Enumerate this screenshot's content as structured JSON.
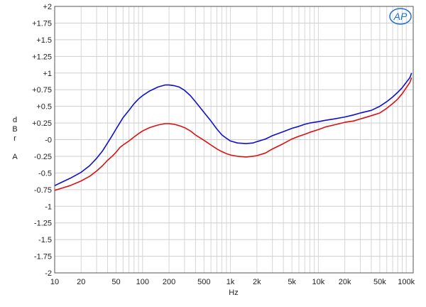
{
  "chart_data": {
    "type": "line",
    "title": "",
    "xlabel": "Hz",
    "ylabel": [
      "d",
      "B",
      "r",
      "",
      "A"
    ],
    "x_scale": "log",
    "xlim": [
      10,
      120000
    ],
    "ylim": [
      -2,
      2
    ],
    "grid": true,
    "legend": "none",
    "logo": "AP",
    "x_ticks": [
      {
        "value": 10,
        "label": "10"
      },
      {
        "value": 20,
        "label": "20"
      },
      {
        "value": 50,
        "label": "50"
      },
      {
        "value": 100,
        "label": "100"
      },
      {
        "value": 200,
        "label": "200"
      },
      {
        "value": 500,
        "label": "500"
      },
      {
        "value": 1000,
        "label": "1k"
      },
      {
        "value": 2000,
        "label": "2k"
      },
      {
        "value": 5000,
        "label": "5k"
      },
      {
        "value": 10000,
        "label": "10k"
      },
      {
        "value": 20000,
        "label": "20k"
      },
      {
        "value": 50000,
        "label": "50k"
      },
      {
        "value": 100000,
        "label": "100k"
      }
    ],
    "y_ticks": [
      {
        "value": 2,
        "label": "+2"
      },
      {
        "value": 1.75,
        "label": "+1.75"
      },
      {
        "value": 1.5,
        "label": "+1.5"
      },
      {
        "value": 1.25,
        "label": "+1.25"
      },
      {
        "value": 1,
        "label": "+1"
      },
      {
        "value": 0.75,
        "label": "+0.75"
      },
      {
        "value": 0.5,
        "label": "+0.5"
      },
      {
        "value": 0.25,
        "label": "+0.25"
      },
      {
        "value": 0,
        "label": "-0"
      },
      {
        "value": -0.25,
        "label": "-0.25"
      },
      {
        "value": -0.5,
        "label": "-0.5"
      },
      {
        "value": -0.75,
        "label": "-0.75"
      },
      {
        "value": -1,
        "label": "-1"
      },
      {
        "value": -1.25,
        "label": "-1.25"
      },
      {
        "value": -1.5,
        "label": "-1.5"
      },
      {
        "value": -1.75,
        "label": "-1.75"
      },
      {
        "value": -2,
        "label": "-2"
      }
    ],
    "series": [
      {
        "color": "#1010cc",
        "points": [
          [
            10,
            -0.69
          ],
          [
            12,
            -0.64
          ],
          [
            15,
            -0.58
          ],
          [
            20,
            -0.49
          ],
          [
            25,
            -0.39
          ],
          [
            30,
            -0.28
          ],
          [
            35,
            -0.17
          ],
          [
            40,
            -0.05
          ],
          [
            45,
            0.06
          ],
          [
            50,
            0.16
          ],
          [
            55,
            0.25
          ],
          [
            60,
            0.33
          ],
          [
            70,
            0.44
          ],
          [
            80,
            0.54
          ],
          [
            90,
            0.61
          ],
          [
            100,
            0.66
          ],
          [
            120,
            0.73
          ],
          [
            150,
            0.79
          ],
          [
            180,
            0.82
          ],
          [
            200,
            0.82
          ],
          [
            230,
            0.81
          ],
          [
            260,
            0.79
          ],
          [
            300,
            0.74
          ],
          [
            350,
            0.66
          ],
          [
            400,
            0.57
          ],
          [
            500,
            0.41
          ],
          [
            600,
            0.28
          ],
          [
            700,
            0.16
          ],
          [
            800,
            0.07
          ],
          [
            900,
            0.02
          ],
          [
            1000,
            -0.02
          ],
          [
            1200,
            -0.05
          ],
          [
            1500,
            -0.06
          ],
          [
            1800,
            -0.05
          ],
          [
            2000,
            -0.03
          ],
          [
            2500,
            0.01
          ],
          [
            3000,
            0.06
          ],
          [
            4000,
            0.12
          ],
          [
            5000,
            0.17
          ],
          [
            6000,
            0.2
          ],
          [
            7000,
            0.23
          ],
          [
            8000,
            0.25
          ],
          [
            10000,
            0.27
          ],
          [
            12000,
            0.29
          ],
          [
            15000,
            0.31
          ],
          [
            20000,
            0.34
          ],
          [
            25000,
            0.37
          ],
          [
            30000,
            0.4
          ],
          [
            40000,
            0.44
          ],
          [
            50000,
            0.5
          ],
          [
            60000,
            0.57
          ],
          [
            70000,
            0.64
          ],
          [
            80000,
            0.71
          ],
          [
            90000,
            0.78
          ],
          [
            100000,
            0.86
          ],
          [
            110000,
            0.93
          ],
          [
            115000,
            1.0
          ]
        ]
      },
      {
        "color": "#dd1010",
        "points": [
          [
            10,
            -0.76
          ],
          [
            12,
            -0.73
          ],
          [
            15,
            -0.69
          ],
          [
            20,
            -0.62
          ],
          [
            25,
            -0.55
          ],
          [
            30,
            -0.47
          ],
          [
            35,
            -0.39
          ],
          [
            40,
            -0.31
          ],
          [
            45,
            -0.25
          ],
          [
            50,
            -0.19
          ],
          [
            55,
            -0.12
          ],
          [
            60,
            -0.08
          ],
          [
            70,
            -0.02
          ],
          [
            80,
            0.04
          ],
          [
            90,
            0.09
          ],
          [
            100,
            0.13
          ],
          [
            120,
            0.18
          ],
          [
            150,
            0.22
          ],
          [
            180,
            0.24
          ],
          [
            200,
            0.24
          ],
          [
            230,
            0.23
          ],
          [
            260,
            0.21
          ],
          [
            300,
            0.18
          ],
          [
            350,
            0.13
          ],
          [
            400,
            0.07
          ],
          [
            500,
            -0.01
          ],
          [
            600,
            -0.08
          ],
          [
            700,
            -0.14
          ],
          [
            800,
            -0.18
          ],
          [
            900,
            -0.21
          ],
          [
            1000,
            -0.23
          ],
          [
            1200,
            -0.25
          ],
          [
            1500,
            -0.26
          ],
          [
            1800,
            -0.25
          ],
          [
            2000,
            -0.24
          ],
          [
            2500,
            -0.2
          ],
          [
            3000,
            -0.14
          ],
          [
            4000,
            -0.06
          ],
          [
            5000,
            0.01
          ],
          [
            6000,
            0.05
          ],
          [
            7000,
            0.08
          ],
          [
            8000,
            0.11
          ],
          [
            10000,
            0.15
          ],
          [
            12000,
            0.19
          ],
          [
            15000,
            0.22
          ],
          [
            20000,
            0.26
          ],
          [
            25000,
            0.28
          ],
          [
            30000,
            0.31
          ],
          [
            40000,
            0.36
          ],
          [
            50000,
            0.4
          ],
          [
            60000,
            0.47
          ],
          [
            70000,
            0.54
          ],
          [
            80000,
            0.61
          ],
          [
            90000,
            0.69
          ],
          [
            100000,
            0.78
          ],
          [
            110000,
            0.86
          ],
          [
            115000,
            0.93
          ]
        ]
      }
    ]
  }
}
